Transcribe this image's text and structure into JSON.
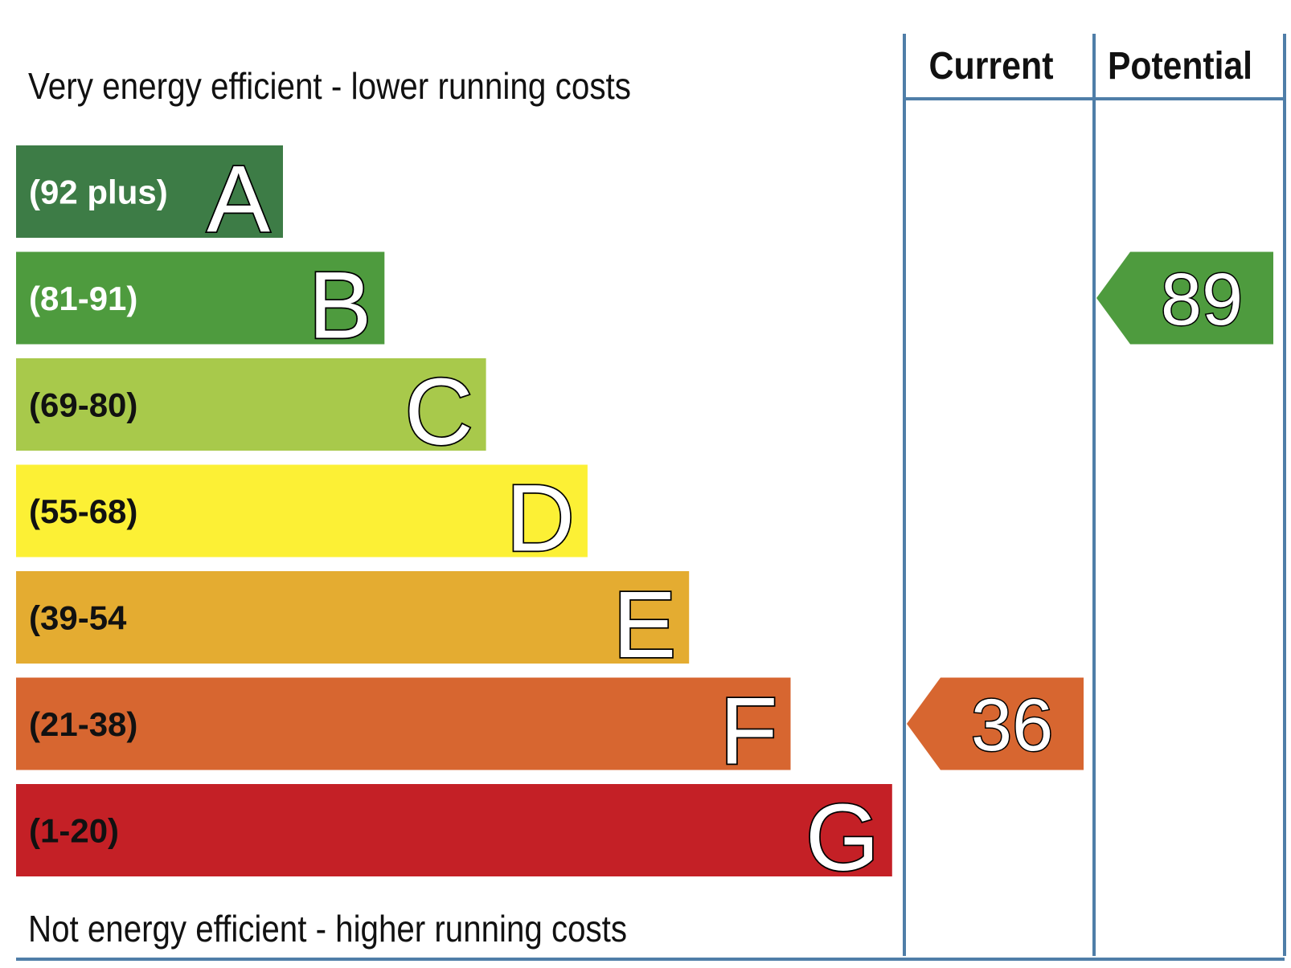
{
  "chart_data": {
    "type": "bar",
    "top_caption": "Very energy efficient - lower running costs",
    "bottom_caption": "Not energy efficient - higher running costs",
    "columns": [
      "Current",
      "Potential"
    ],
    "bands": [
      {
        "letter": "A",
        "range": "(92 plus)",
        "min": 92,
        "max": 100,
        "color": "#3d7c46",
        "range_text_color": "#ffffff"
      },
      {
        "letter": "B",
        "range": "(81-91)",
        "min": 81,
        "max": 91,
        "color": "#4e9b3e",
        "range_text_color": "#ffffff"
      },
      {
        "letter": "C",
        "range": "(69-80)",
        "min": 69,
        "max": 80,
        "color": "#a8c94b",
        "range_text_color": "#111111"
      },
      {
        "letter": "D",
        "range": "(55-68)",
        "min": 55,
        "max": 68,
        "color": "#fcf035",
        "range_text_color": "#111111"
      },
      {
        "letter": "E",
        "range": "(39-54",
        "min": 39,
        "max": 54,
        "color": "#e4ac31",
        "range_text_color": "#111111"
      },
      {
        "letter": "F",
        "range": "(21-38)",
        "min": 21,
        "max": 38,
        "color": "#d76630",
        "range_text_color": "#111111"
      },
      {
        "letter": "G",
        "range": "(1-20)",
        "min": 1,
        "max": 20,
        "color": "#c42026",
        "range_text_color": "#111111"
      }
    ],
    "current": {
      "value": 36,
      "band": "F",
      "color": "#d76630"
    },
    "potential": {
      "value": 89,
      "band": "B",
      "color": "#4e9b3e"
    }
  }
}
